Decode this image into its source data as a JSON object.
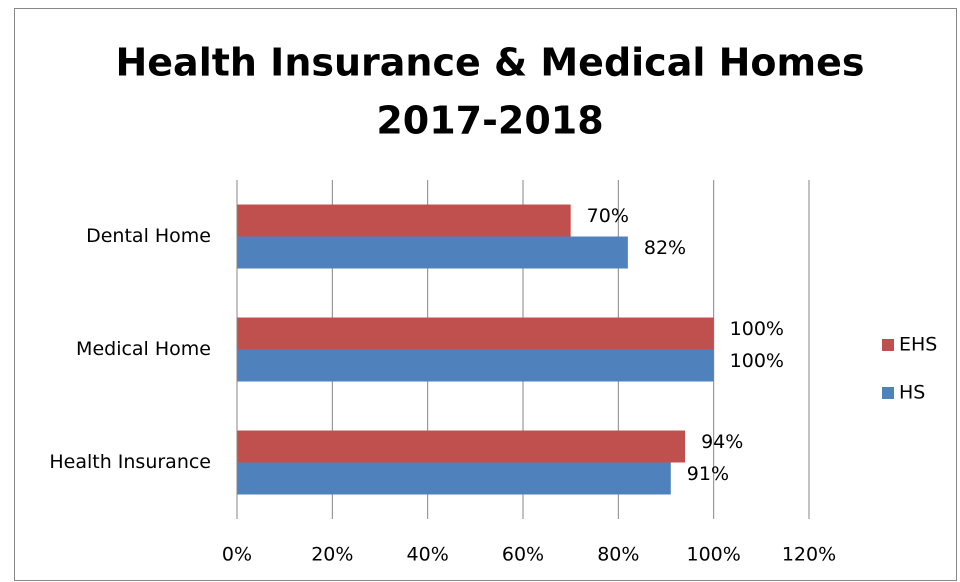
{
  "chart_data": {
    "type": "hbar",
    "title": [
      "Health Insurance & Medical Homes",
      "2017-2018"
    ],
    "categories": [
      "Dental Home",
      "Medical Home",
      "Health Insurance"
    ],
    "series": [
      {
        "name": "EHS",
        "color": "#c0504d",
        "values": [
          70,
          100,
          94
        ],
        "value_labels": [
          "70%",
          "100%",
          "94%"
        ]
      },
      {
        "name": "HS",
        "color": "#4f81bd",
        "values": [
          82,
          100,
          91
        ],
        "value_labels": [
          "82%",
          "100%",
          "91%"
        ]
      }
    ],
    "xlim": [
      0,
      120
    ],
    "xticks": [
      {
        "value": 0,
        "label": "0%"
      },
      {
        "value": 20,
        "label": "20%"
      },
      {
        "value": 40,
        "label": "40%"
      },
      {
        "value": 60,
        "label": "60%"
      },
      {
        "value": 80,
        "label": "80%"
      },
      {
        "value": 100,
        "label": "100%"
      },
      {
        "value": 120,
        "label": "120%"
      }
    ],
    "grid": true,
    "legend": "right"
  }
}
